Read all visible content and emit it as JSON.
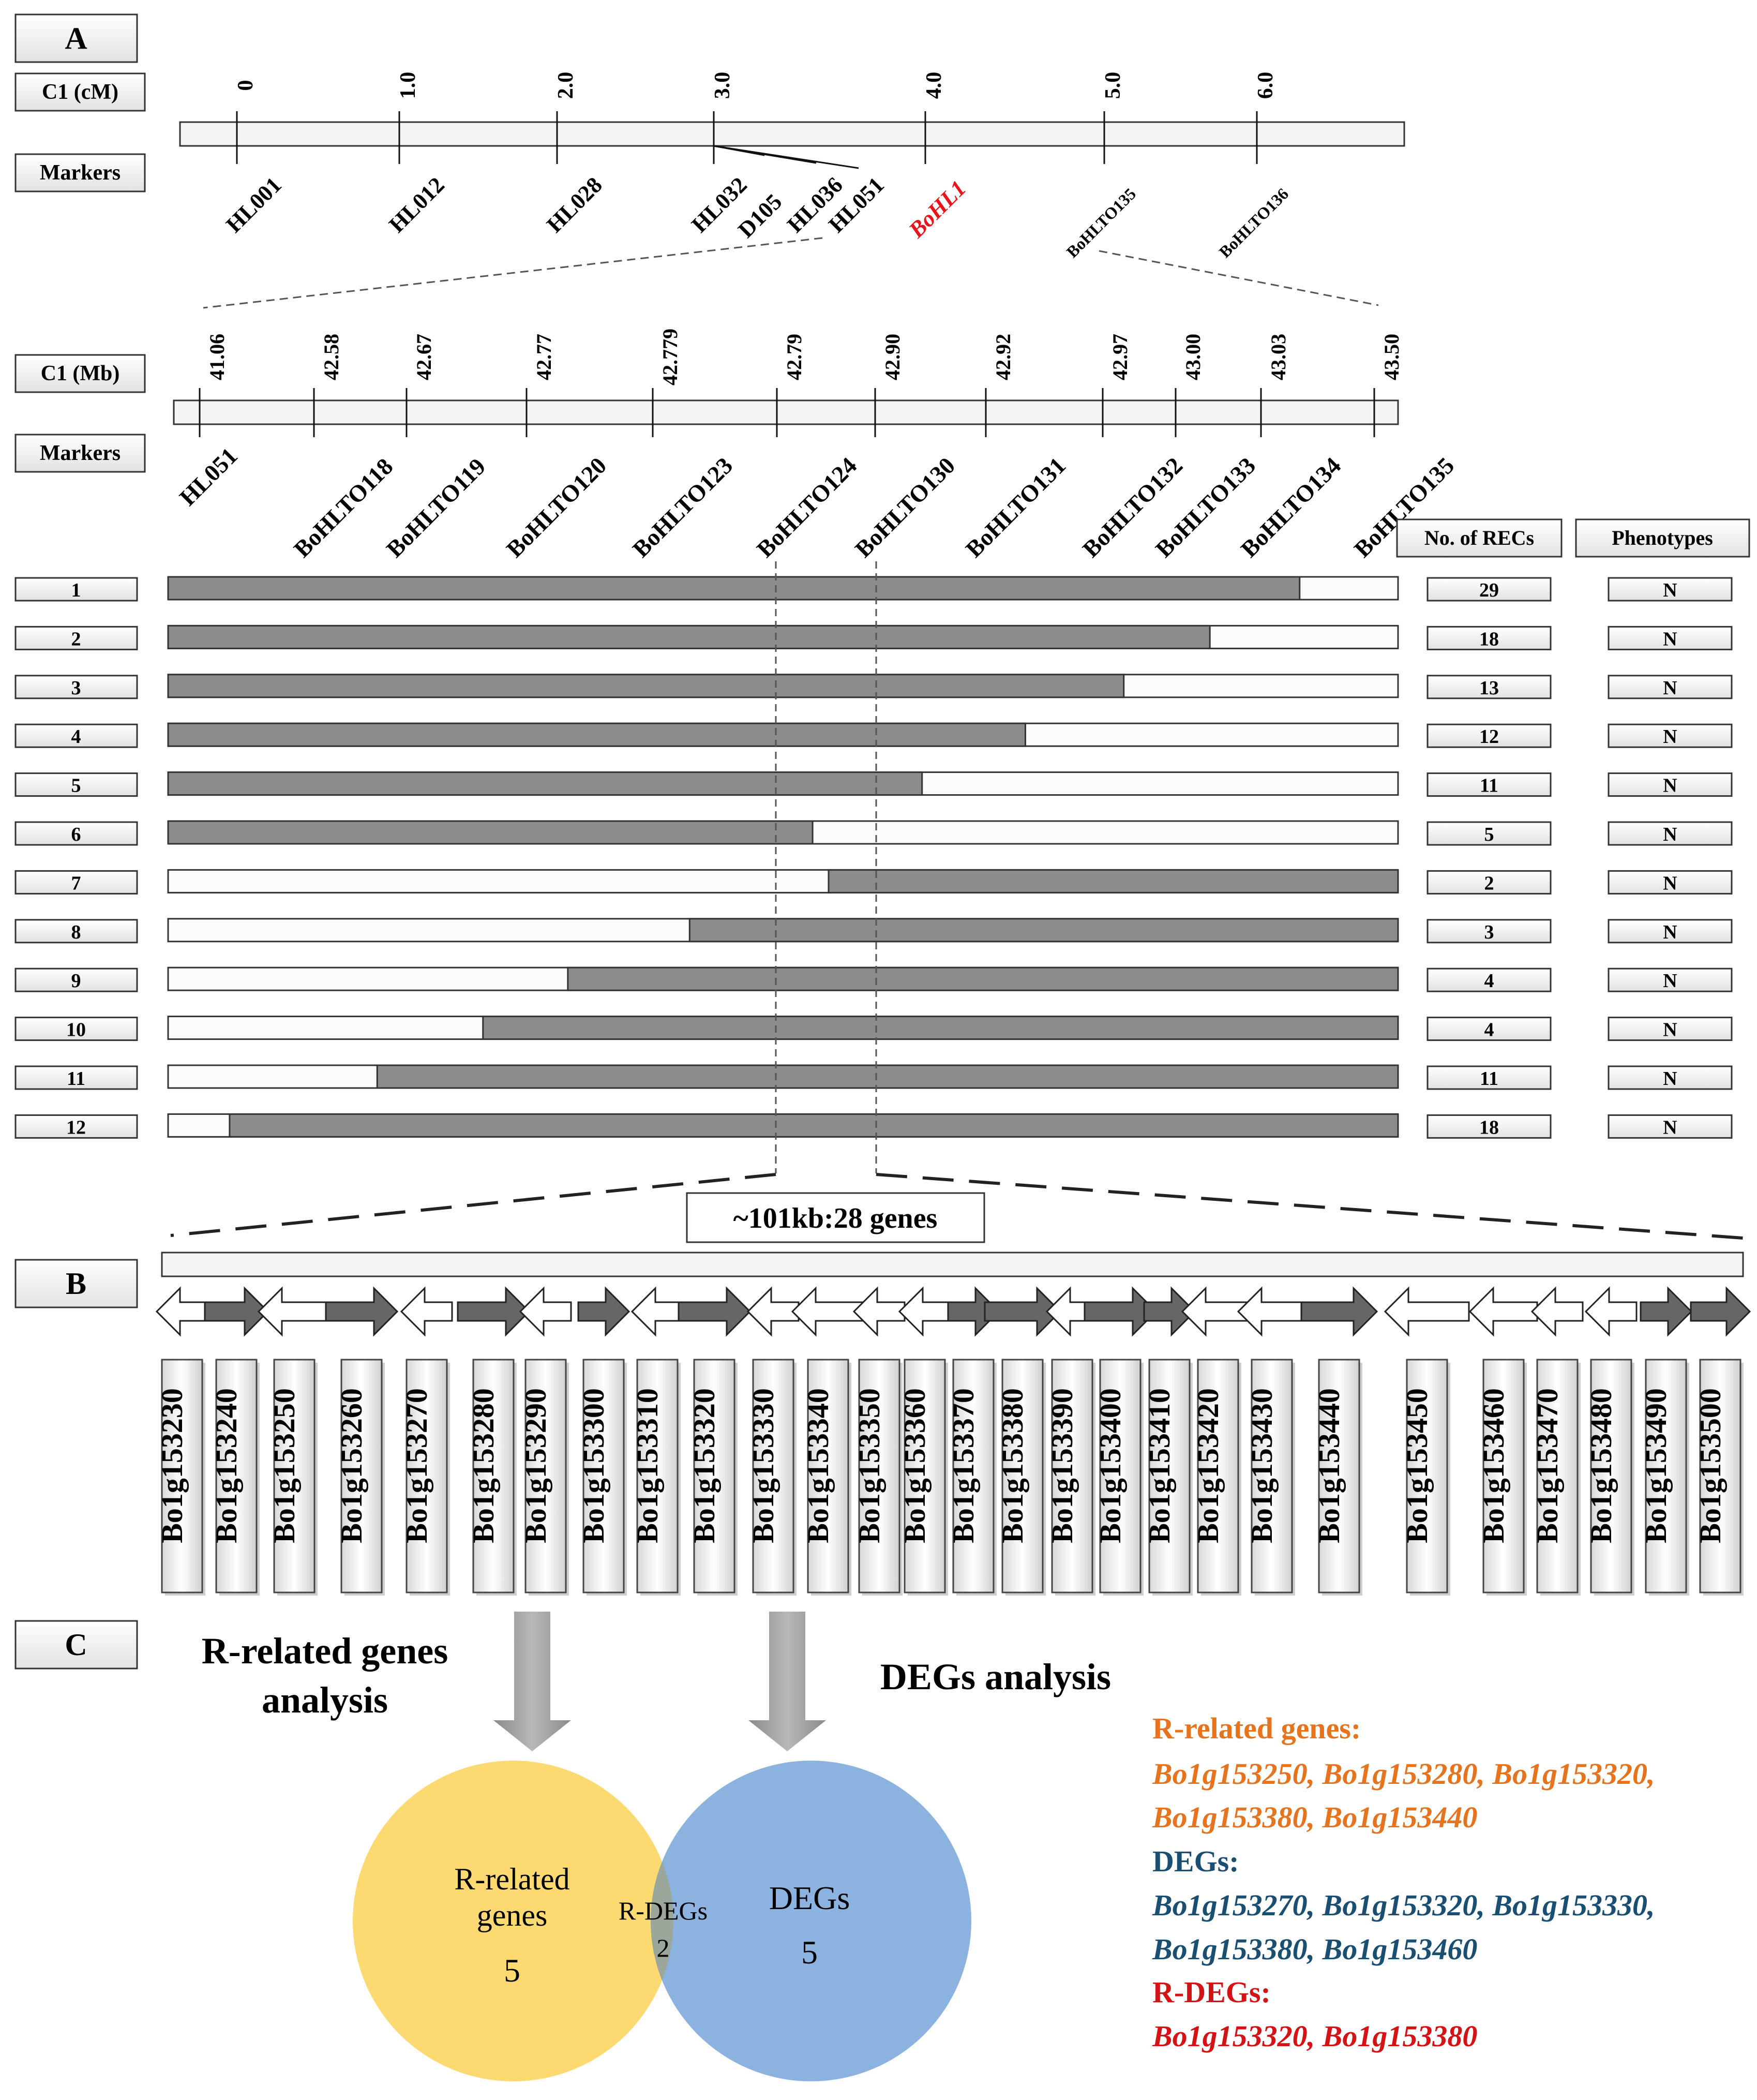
{
  "panels": {
    "a": "A",
    "b": "B",
    "c": "C"
  },
  "labels": {
    "cm_track": "C1 (cM)",
    "mb_track": "C1 (Mb)",
    "markers": "Markers",
    "no_recs": "No. of RECs",
    "phenotypes": "Phenotypes",
    "interval": "~101kb:28 genes"
  },
  "cm_map": {
    "scale": [
      "0",
      "1.0",
      "2.0",
      "3.0",
      "4.0",
      "5.0",
      "6.0"
    ],
    "markers": [
      "HL001",
      "HL012",
      "HL028",
      "HL032",
      "D105",
      "HL036",
      "HL051",
      "BoHL1",
      "BoHLTO135",
      "BoHLTO136"
    ],
    "target_gene": "BoHL1",
    "target_color": "#e8141b"
  },
  "mb_map": {
    "positions": [
      "41.06",
      "42.58",
      "42.67",
      "42.77",
      "42.779",
      "42.79",
      "42.90",
      "42.92",
      "42.97",
      "43.00",
      "43.03",
      "43.50"
    ],
    "markers": [
      "HL051",
      "BoHLTO118",
      "BoHLTO119",
      "BoHLTO120",
      "BoHLTO123",
      "BoHLTO124",
      "BoHLTO130",
      "BoHLTO131",
      "BoHLTO132",
      "BoHLTO133",
      "BoHLTO134",
      "BoHLTO135"
    ]
  },
  "recombinants": [
    {
      "id": "1",
      "recs": "29",
      "phenotype": "N",
      "start": 0.0,
      "end": 0.92
    },
    {
      "id": "2",
      "recs": "18",
      "phenotype": "N",
      "start": 0.0,
      "end": 0.847
    },
    {
      "id": "3",
      "recs": "13",
      "phenotype": "N",
      "start": 0.0,
      "end": 0.777
    },
    {
      "id": "4",
      "recs": "12",
      "phenotype": "N",
      "start": 0.0,
      "end": 0.697
    },
    {
      "id": "5",
      "recs": "11",
      "phenotype": "N",
      "start": 0.0,
      "end": 0.613
    },
    {
      "id": "6",
      "recs": "5",
      "phenotype": "N",
      "start": 0.0,
      "end": 0.524
    },
    {
      "id": "7",
      "recs": "2",
      "phenotype": "N",
      "start": 0.537,
      "end": 1.0
    },
    {
      "id": "8",
      "recs": "3",
      "phenotype": "N",
      "start": 0.424,
      "end": 1.0
    },
    {
      "id": "9",
      "recs": "4",
      "phenotype": "N",
      "start": 0.325,
      "end": 1.0
    },
    {
      "id": "10",
      "recs": "4",
      "phenotype": "N",
      "start": 0.256,
      "end": 1.0
    },
    {
      "id": "11",
      "recs": "11",
      "phenotype": "N",
      "start": 0.17,
      "end": 1.0
    },
    {
      "id": "12",
      "recs": "18",
      "phenotype": "N",
      "start": 0.05,
      "end": 1.0
    }
  ],
  "genes": [
    {
      "name": "Bo1g153230",
      "dir": "left",
      "len": 0.6
    },
    {
      "name": "Bo1g153240",
      "dir": "right",
      "len": 0.9
    },
    {
      "name": "Bo1g153250",
      "dir": "left",
      "len": 1.1
    },
    {
      "name": "Bo1g153260",
      "dir": "right",
      "len": 1.1
    },
    {
      "name": "Bo1g153270",
      "dir": "left",
      "len": 0.6
    },
    {
      "name": "Bo1g153280",
      "dir": "right",
      "len": 1.1
    },
    {
      "name": "Bo1g153290",
      "dir": "left",
      "len": 0.6
    },
    {
      "name": "Bo1g153300",
      "dir": "right",
      "len": 0.6
    },
    {
      "name": "Bo1g153310",
      "dir": "left",
      "len": 0.6
    },
    {
      "name": "Bo1g153320",
      "dir": "right",
      "len": 1.1
    },
    {
      "name": "Bo1g153330",
      "dir": "left",
      "len": 0.6
    },
    {
      "name": "Bo1g153340",
      "dir": "left",
      "len": 1.1
    },
    {
      "name": "Bo1g153350",
      "dir": "left",
      "len": 0.6
    },
    {
      "name": "Bo1g153360",
      "dir": "left",
      "len": 0.6
    },
    {
      "name": "Bo1g153370",
      "dir": "right",
      "len": 0.6
    },
    {
      "name": "Bo1g153380",
      "dir": "right",
      "len": 1.2
    },
    {
      "name": "Bo1g153390",
      "dir": "left",
      "len": 0.6
    },
    {
      "name": "Bo1g153400",
      "dir": "right",
      "len": 1.1
    },
    {
      "name": "Bo1g153410",
      "dir": "right",
      "len": 0.6
    },
    {
      "name": "Bo1g153420",
      "dir": "left",
      "len": 1.1
    },
    {
      "name": "Bo1g153430",
      "dir": "left",
      "len": 1.0
    },
    {
      "name": "Bo1g153440",
      "dir": "right",
      "len": 1.2
    },
    {
      "name": "Bo1g153450",
      "dir": "left",
      "len": 1.4
    },
    {
      "name": "Bo1g153460",
      "dir": "left",
      "len": 1.0
    },
    {
      "name": "Bo1g153470",
      "dir": "left",
      "len": 0.6
    },
    {
      "name": "Bo1g153480",
      "dir": "left",
      "len": 0.6
    },
    {
      "name": "Bo1g153490",
      "dir": "right",
      "len": 0.6
    },
    {
      "name": "Bo1g153500",
      "dir": "right",
      "len": 0.8
    }
  ],
  "analysis": {
    "r_title_line1": "R-related genes",
    "r_title_line2": "analysis",
    "deg_title": "DEGs analysis",
    "venn": {
      "left_line1": "R-related",
      "left_line2": "genes",
      "left_count": "5",
      "mid_label": "R-DEGs",
      "mid_count": "2",
      "right_label": "DEGs",
      "right_count": "5"
    },
    "legend": [
      {
        "title": "R-related genes:",
        "line1": "Bo1g153250, Bo1g153280, Bo1g153320,",
        "line2": "Bo1g153380, Bo1g153440",
        "color": "#e6731e"
      },
      {
        "title": "DEGs:",
        "line1": "Bo1g153270, Bo1g153320, Bo1g153330,",
        "line2": "Bo1g153380, Bo1g153460",
        "color": "#1b4f72"
      },
      {
        "title": "R-DEGs:",
        "line1": "Bo1g153320, Bo1g153380",
        "line2": "",
        "color": "#d41317"
      }
    ]
  },
  "colors": {
    "gray_fill": "#8c8c8c",
    "venn_left": "#fdd972",
    "venn_right": "#8cb2e0",
    "venn_overlap": "#9aa79a",
    "arrow_fill": "#666666"
  }
}
